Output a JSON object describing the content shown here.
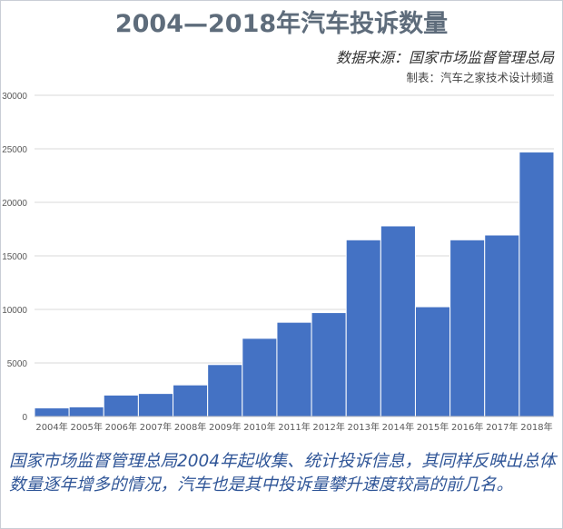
{
  "header": {
    "title": "2004—2018年汽车投诉数量",
    "source": "数据来源：国家市场监督管理总局",
    "maker": "制表：汽车之家技术设计频道"
  },
  "caption": "国家市场监督管理总局2004年起收集、统计投诉信息，其同样反映出总体数量逐年增多的情况，汽车也是其中投诉量攀升速度较高的前几名。",
  "colors": {
    "bar": "#4472c4",
    "grid": "#d9d9d9",
    "axis_text": "#595959"
  },
  "chart_data": {
    "type": "bar",
    "title": "2004—2018年汽车投诉数量",
    "xlabel": "",
    "ylabel": "",
    "ylim": [
      0,
      30000
    ],
    "yticks": [
      0,
      5000,
      10000,
      15000,
      20000,
      25000,
      30000
    ],
    "grid": true,
    "categories": [
      "2004年",
      "2005年",
      "2006年",
      "2007年",
      "2008年",
      "2009年",
      "2010年",
      "2011年",
      "2012年",
      "2013年",
      "2014年",
      "2015年",
      "2016年",
      "2017年",
      "2018年"
    ],
    "values": [
      800,
      900,
      2000,
      2150,
      2950,
      4850,
      7300,
      8800,
      9700,
      16500,
      17800,
      10250,
      16500,
      16950,
      24700
    ]
  }
}
